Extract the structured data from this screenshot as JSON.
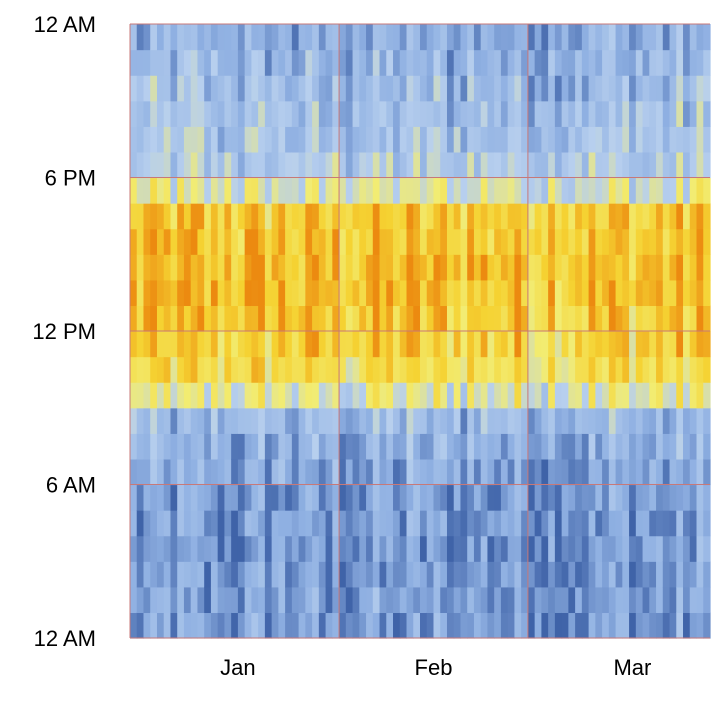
{
  "chart_data": {
    "type": "heatmap",
    "title": "",
    "xlabel": "",
    "ylabel": "",
    "x_ticks": [
      {
        "label": "Jan",
        "day": 16
      },
      {
        "label": "Feb",
        "day": 45
      },
      {
        "label": "Mar",
        "day": 74.5
      }
    ],
    "month_boundaries": [
      31,
      59
    ],
    "days_shown": 86,
    "y_ticks": [
      {
        "label": "12 AM",
        "hour": 0
      },
      {
        "label": "6 AM",
        "hour": 6
      },
      {
        "label": "12 PM",
        "hour": 12
      },
      {
        "label": "6 PM",
        "hour": 18
      },
      {
        "label": "12 AM",
        "hour": 24
      }
    ],
    "hours_per_day": 24,
    "value_range": [
      0,
      1
    ],
    "colorscale": [
      "#3f63a8",
      "#8fb0e2",
      "#b7cfee",
      "#f2ec72",
      "#f5d232",
      "#ec8a10"
    ],
    "grid_color": "#c87878",
    "value_profile_by_hour": [
      0.15,
      0.14,
      0.14,
      0.13,
      0.14,
      0.15,
      0.18,
      0.22,
      0.27,
      0.52,
      0.7,
      0.78,
      0.82,
      0.85,
      0.84,
      0.82,
      0.8,
      0.5,
      0.36,
      0.33,
      0.3,
      0.28,
      0.24,
      0.2
    ]
  }
}
